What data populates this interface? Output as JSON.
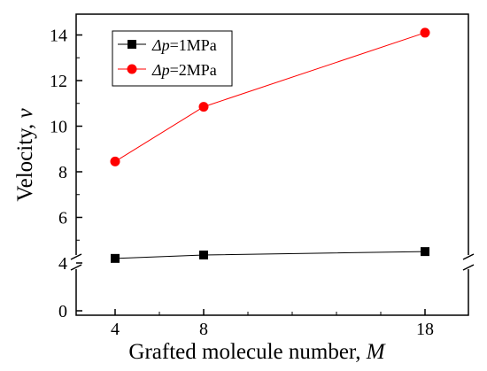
{
  "chart_data": {
    "type": "line",
    "x": [
      4,
      8,
      18
    ],
    "x_tick_labels": [
      "4",
      "8",
      "18"
    ],
    "y_tick_labels": [
      "0",
      "4",
      "6",
      "8",
      "10",
      "12",
      "14"
    ],
    "y_axis_break": [
      0.5,
      4
    ],
    "xlabel": {
      "main": "Grafted molecule number, ",
      "symbol": "M"
    },
    "ylabel": {
      "main": "Velocity, ",
      "symbol": "v"
    },
    "legend_placement": "top-left",
    "grid": false,
    "series": [
      {
        "name": "Δp=1MPa",
        "name_symbol": "Δp",
        "name_rest": "=1MPa",
        "values": [
          4.2,
          4.35,
          4.5
        ],
        "color": "#000000",
        "marker": "square"
      },
      {
        "name": "Δp=2MPa",
        "name_symbol": "Δp",
        "name_rest": "=2MPa",
        "values": [
          8.45,
          10.85,
          14.1
        ],
        "color": "#ff0000",
        "marker": "circle"
      }
    ]
  }
}
